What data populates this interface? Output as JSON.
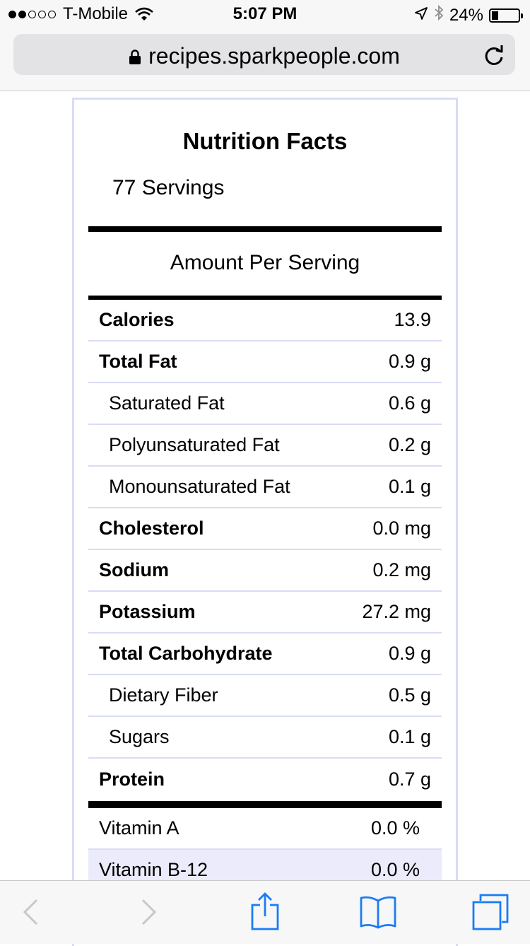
{
  "status_bar": {
    "carrier": "T-Mobile",
    "signal_bars_filled": 2,
    "signal_bars_total": 5,
    "time": "5:07 PM",
    "battery": "24%",
    "battery_level": 0.24,
    "icons": [
      "wifi-icon",
      "location-arrow-icon",
      "bluetooth-icon",
      "battery-icon"
    ]
  },
  "address_bar": {
    "url": "recipes.sparkpeople.com",
    "icons": [
      "lock-icon",
      "reload-icon"
    ]
  },
  "nutrition": {
    "title": "Nutrition Facts",
    "servings": "77 Servings",
    "amount_per_serving": "Amount Per Serving",
    "rows": [
      {
        "label": "Calories",
        "value": "13.9"
      },
      {
        "label": "Total Fat",
        "value": "0.9 g"
      },
      {
        "label": "Saturated Fat",
        "value": "0.6 g"
      },
      {
        "label": "Polyunsaturated Fat",
        "value": "0.2 g"
      },
      {
        "label": "Monounsaturated Fat",
        "value": "0.1 g"
      },
      {
        "label": "Cholesterol",
        "value": "0.0 mg"
      },
      {
        "label": "Sodium",
        "value": "0.2 mg"
      },
      {
        "label": "Potassium",
        "value": "27.2 mg"
      },
      {
        "label": "Total Carbohydrate",
        "value": "0.9 g"
      },
      {
        "label": "Dietary Fiber",
        "value": "0.5 g"
      },
      {
        "label": "Sugars",
        "value": "0.1 g"
      },
      {
        "label": "Protein",
        "value": "0.7 g"
      }
    ],
    "vitamins": [
      {
        "label": "Vitamin A",
        "value": "0.0 %"
      },
      {
        "label": "Vitamin B-12",
        "value": "0.0 %"
      }
    ]
  },
  "toolbar": {
    "icons": [
      "back-icon",
      "forward-icon",
      "share-icon",
      "bookmarks-icon",
      "tabs-icon"
    ]
  },
  "colors": {
    "accent": "#1a7cf5",
    "panel_border": "#d9dcf6",
    "vitamin_shade": "#ebebfb"
  }
}
